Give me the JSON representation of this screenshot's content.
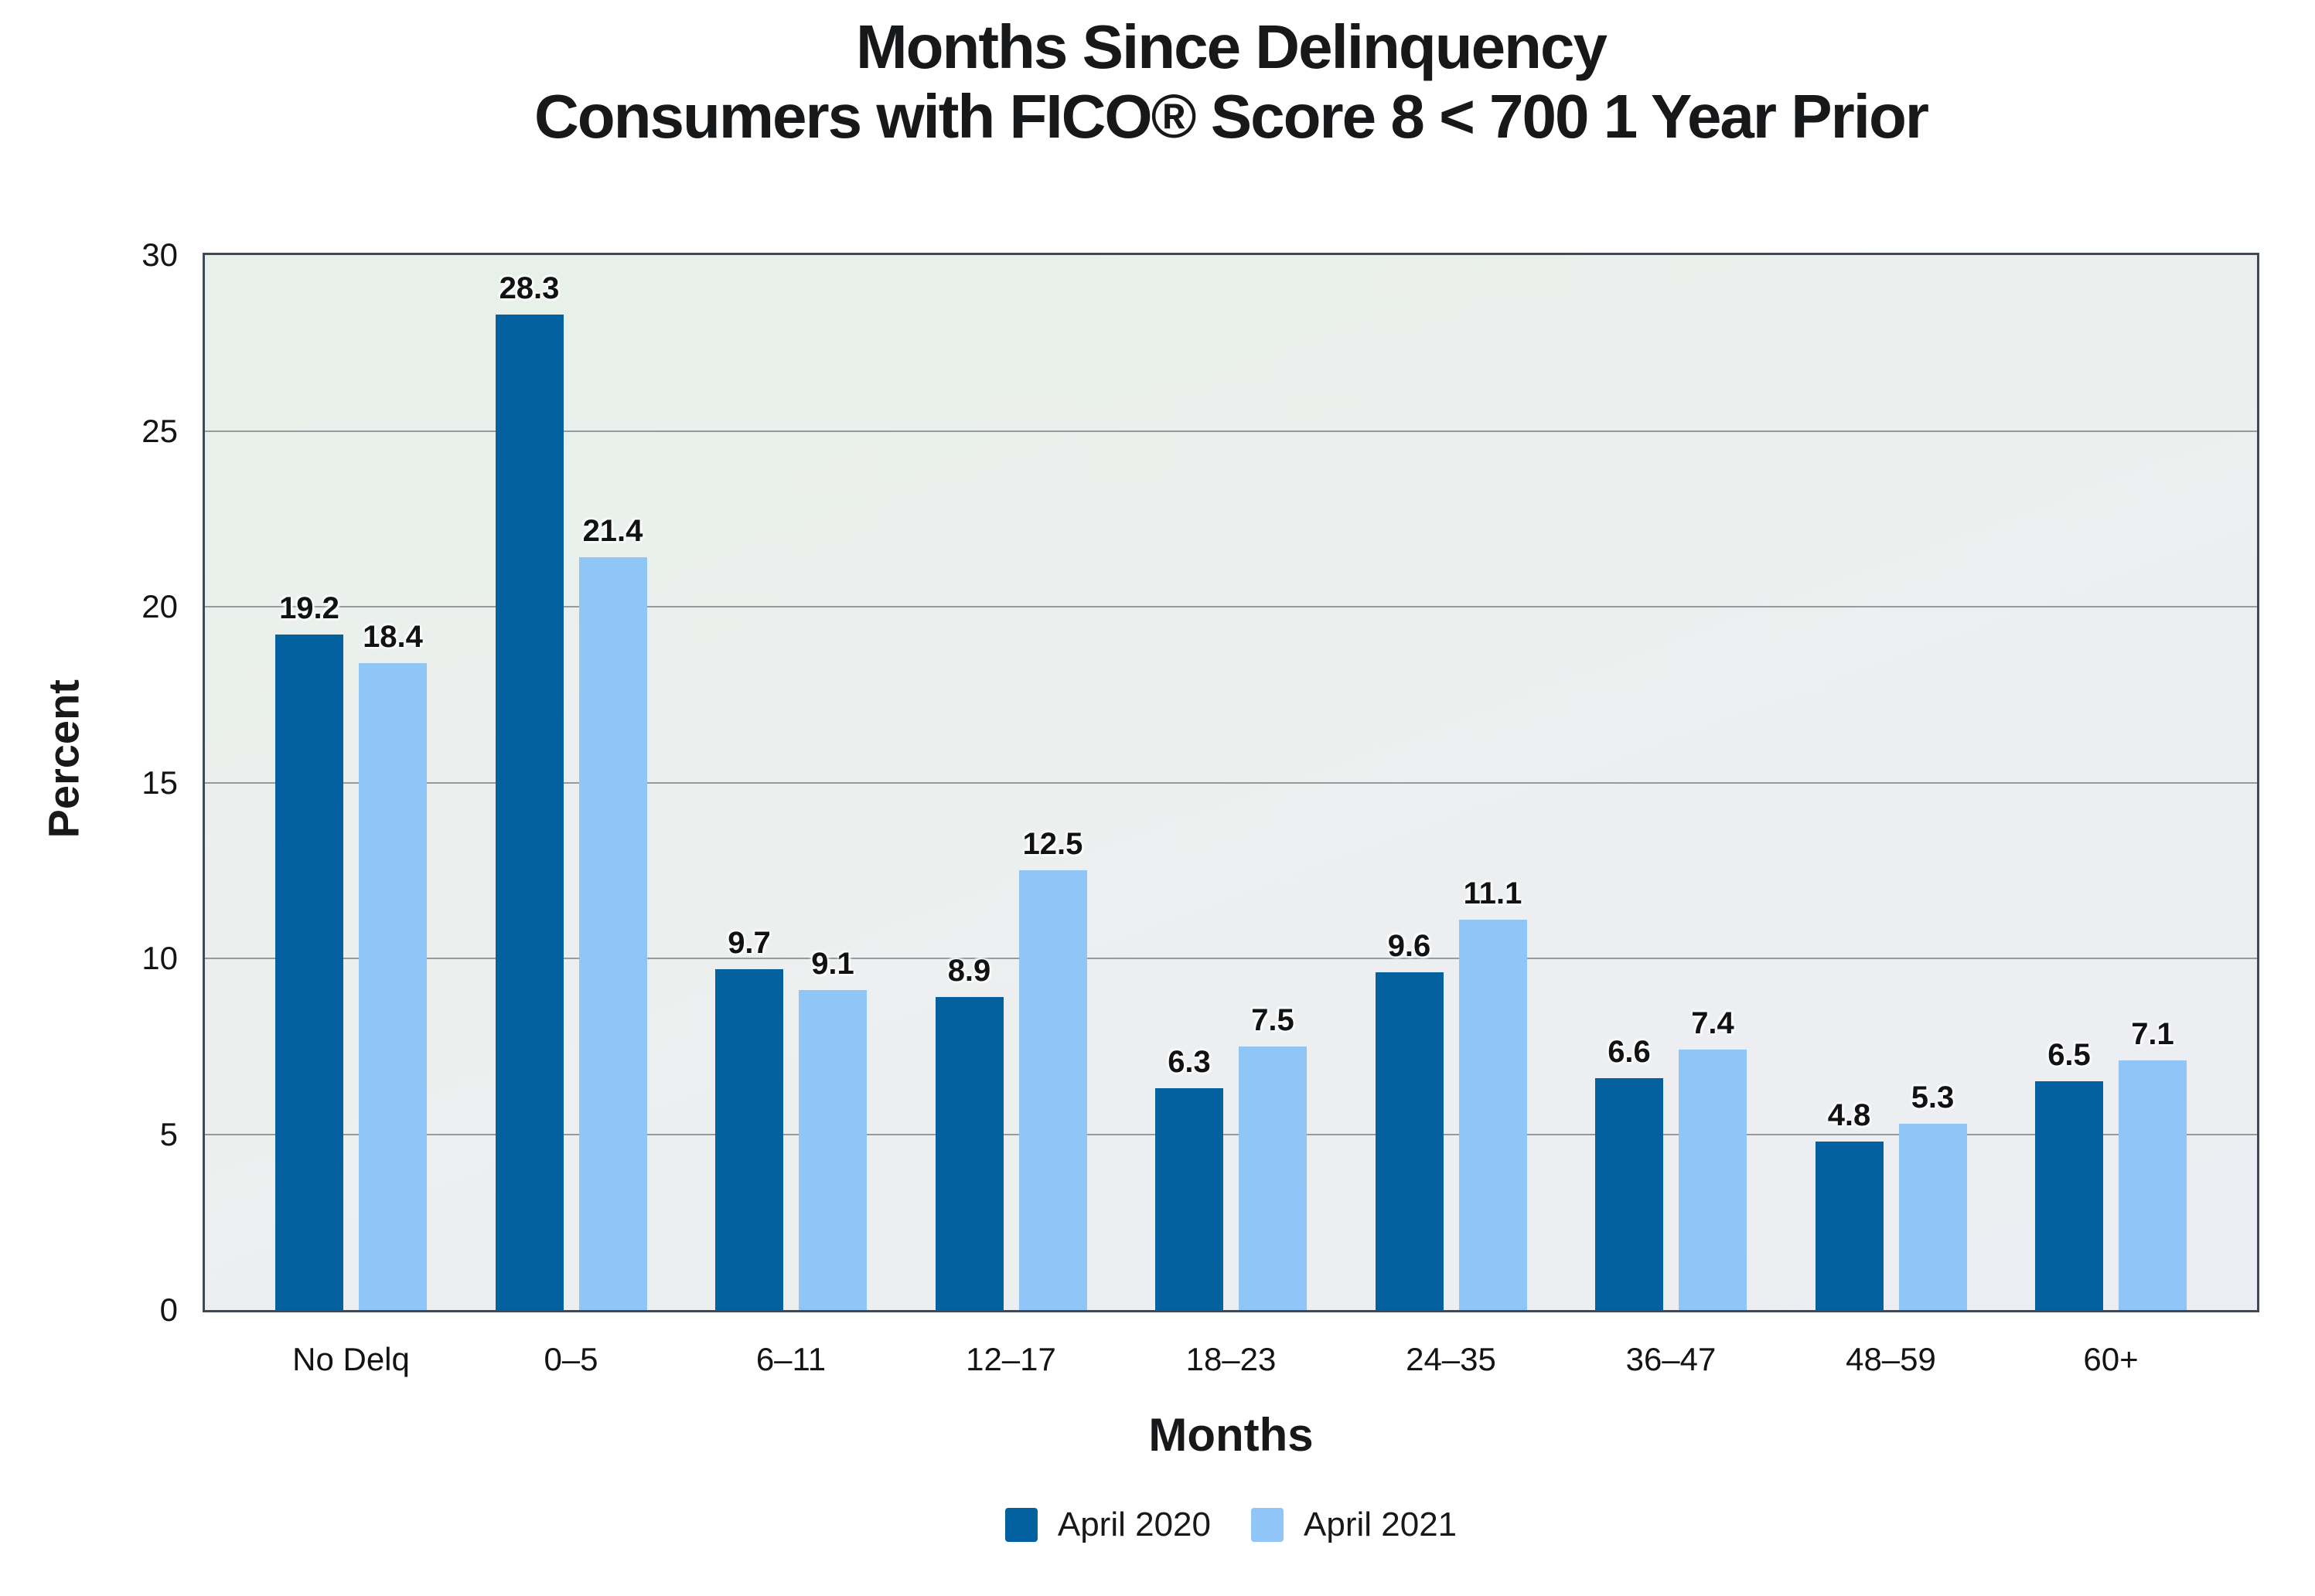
{
  "title": {
    "line1": "Months Since Delinquency",
    "line2": "Consumers with FICO® Score 8 < 700 1 Year Prior"
  },
  "chart_data": {
    "type": "bar",
    "title": "Months Since Delinquency Consumers with FICO® Score 8 < 700 1 Year Prior",
    "categories": [
      "No Delq",
      "0–5",
      "6–11",
      "12–17",
      "18–23",
      "24–35",
      "36–47",
      "48–59",
      "60+"
    ],
    "series": [
      {
        "name": "April 2020",
        "color": "#02619e",
        "values": [
          19.2,
          28.3,
          9.7,
          8.9,
          6.3,
          9.6,
          6.6,
          4.8,
          6.5
        ]
      },
      {
        "name": "April 2021",
        "color": "#8fc5f7",
        "values": [
          18.4,
          21.4,
          9.1,
          12.5,
          7.5,
          11.1,
          7.4,
          5.3,
          7.1
        ]
      }
    ],
    "xlabel": "Months",
    "ylabel": "Percent",
    "ylim": [
      0,
      30
    ],
    "yticks": [
      0,
      5,
      10,
      15,
      20,
      25,
      30
    ],
    "grid": true,
    "legend_position": "bottom",
    "value_labels": true
  },
  "colors": {
    "series_april_2020": "#02619e",
    "series_april_2021": "#8fc5f7",
    "plot_border": "#3e4a56",
    "gridline": "#97999c",
    "plot_bg_top": "#e7f0e9",
    "plot_bg_bottom": "#ecedf2",
    "text": "#17181a",
    "page_bg": "#ffffff"
  }
}
